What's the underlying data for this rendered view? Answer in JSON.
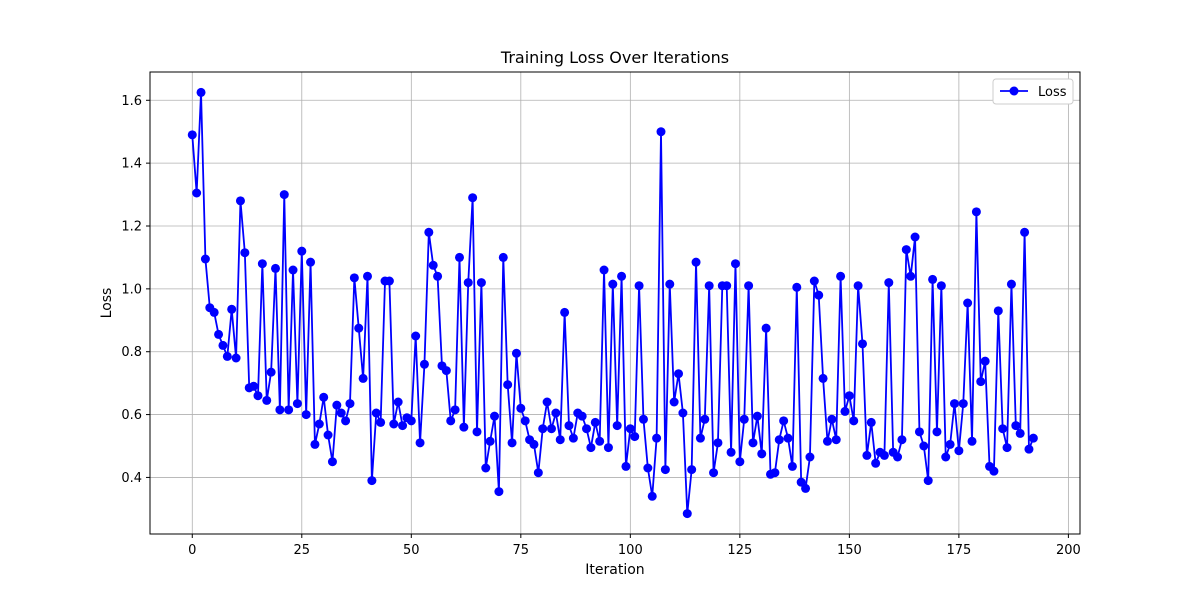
{
  "chart_data": {
    "type": "line",
    "title": "Training Loss Over Iterations",
    "xlabel": "Iteration",
    "ylabel": "Loss",
    "xlim": [
      -9.65,
      202.65
    ],
    "ylim": [
      0.22,
      1.69
    ],
    "xticks": [
      0,
      25,
      50,
      75,
      100,
      125,
      150,
      175,
      200
    ],
    "yticks": [
      0.4,
      0.6,
      0.8,
      1.0,
      1.2,
      1.4,
      1.6
    ],
    "xtick_labels": [
      "0",
      "25",
      "50",
      "75",
      "100",
      "125",
      "150",
      "175",
      "200"
    ],
    "ytick_labels": [
      "0.4",
      "0.6",
      "0.8",
      "1.0",
      "1.2",
      "1.4",
      "1.6"
    ],
    "grid": true,
    "legend_position": "top-right",
    "series": [
      {
        "name": "Loss",
        "color": "#0000ff",
        "marker": "circle",
        "values": [
          1.49,
          1.305,
          1.625,
          1.095,
          0.94,
          0.925,
          0.855,
          0.82,
          0.785,
          0.935,
          0.78,
          1.28,
          1.115,
          0.685,
          0.69,
          0.66,
          1.08,
          0.645,
          0.735,
          1.065,
          0.615,
          1.3,
          0.615,
          1.06,
          0.635,
          1.12,
          0.6,
          1.085,
          0.505,
          0.57,
          0.655,
          0.535,
          0.45,
          0.63,
          0.605,
          0.58,
          0.635,
          1.035,
          0.875,
          0.715,
          1.04,
          0.39,
          0.605,
          0.575,
          1.025,
          1.025,
          0.57,
          0.64,
          0.565,
          0.59,
          0.58,
          0.85,
          0.51,
          0.76,
          1.18,
          1.075,
          1.04,
          0.755,
          0.74,
          0.58,
          0.615,
          1.1,
          0.56,
          1.02,
          1.29,
          0.545,
          1.02,
          0.43,
          0.515,
          0.595,
          0.355,
          1.1,
          0.695,
          0.51,
          0.795,
          0.62,
          0.58,
          0.52,
          0.505,
          0.415,
          0.555,
          0.64,
          0.555,
          0.605,
          0.52,
          0.925,
          0.565,
          0.525,
          0.605,
          0.595,
          0.555,
          0.495,
          0.575,
          0.515,
          1.06,
          0.495,
          1.015,
          0.565,
          1.04,
          0.435,
          0.555,
          0.53,
          1.01,
          0.585,
          0.43,
          0.34,
          0.525,
          1.5,
          0.425,
          1.015,
          0.64,
          0.73,
          0.605,
          0.285,
          0.425,
          1.085,
          0.525,
          0.585,
          1.01,
          0.415,
          0.51,
          1.01,
          1.01,
          0.48,
          1.08,
          0.45,
          0.585,
          1.01,
          0.51,
          0.595,
          0.475,
          0.875,
          0.41,
          0.415,
          0.52,
          0.58,
          0.525,
          0.435,
          1.005,
          0.385,
          0.365,
          0.465,
          1.025,
          0.98,
          0.715,
          0.515,
          0.585,
          0.52,
          1.04,
          0.61,
          0.66,
          0.58,
          1.01,
          0.825,
          0.47,
          0.575,
          0.445,
          0.48,
          0.47,
          1.02,
          0.48,
          0.465,
          0.52,
          1.125,
          1.04,
          1.165,
          0.545,
          0.5,
          0.39,
          1.03,
          0.545,
          1.01,
          0.465,
          0.505,
          0.635,
          0.485,
          0.635,
          0.955,
          0.515,
          1.245,
          0.705,
          0.77,
          0.435,
          0.42,
          0.93,
          0.555,
          0.495,
          1.015,
          0.565,
          0.54,
          1.18,
          0.49,
          0.525
        ]
      }
    ]
  }
}
